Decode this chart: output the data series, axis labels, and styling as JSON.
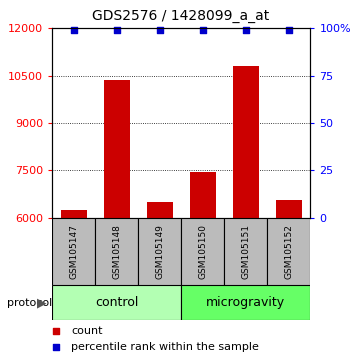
{
  "title": "GDS2576 / 1428099_a_at",
  "samples": [
    "GSM105147",
    "GSM105148",
    "GSM105149",
    "GSM105150",
    "GSM105151",
    "GSM105152"
  ],
  "counts": [
    6250,
    10350,
    6500,
    7450,
    10800,
    6550
  ],
  "percentile_ranks": [
    99,
    99,
    99,
    99,
    99,
    99
  ],
  "groups": [
    {
      "label": "control",
      "samples": [
        0,
        1,
        2
      ],
      "color": "#b3ffb3"
    },
    {
      "label": "microgravity",
      "samples": [
        3,
        4,
        5
      ],
      "color": "#66ff66"
    }
  ],
  "ylim_left": [
    6000,
    12000
  ],
  "ylim_right": [
    0,
    100
  ],
  "yticks_left": [
    6000,
    7500,
    9000,
    10500,
    12000
  ],
  "yticks_right": [
    0,
    25,
    50,
    75,
    100
  ],
  "bar_color": "#cc0000",
  "dot_color": "#0000cc",
  "bar_width": 0.6,
  "label_area_color": "#bbbbbb",
  "title_fontsize": 10,
  "tick_fontsize": 8,
  "legend_fontsize": 8,
  "sample_fontsize": 6.5,
  "group_fontsize": 9
}
